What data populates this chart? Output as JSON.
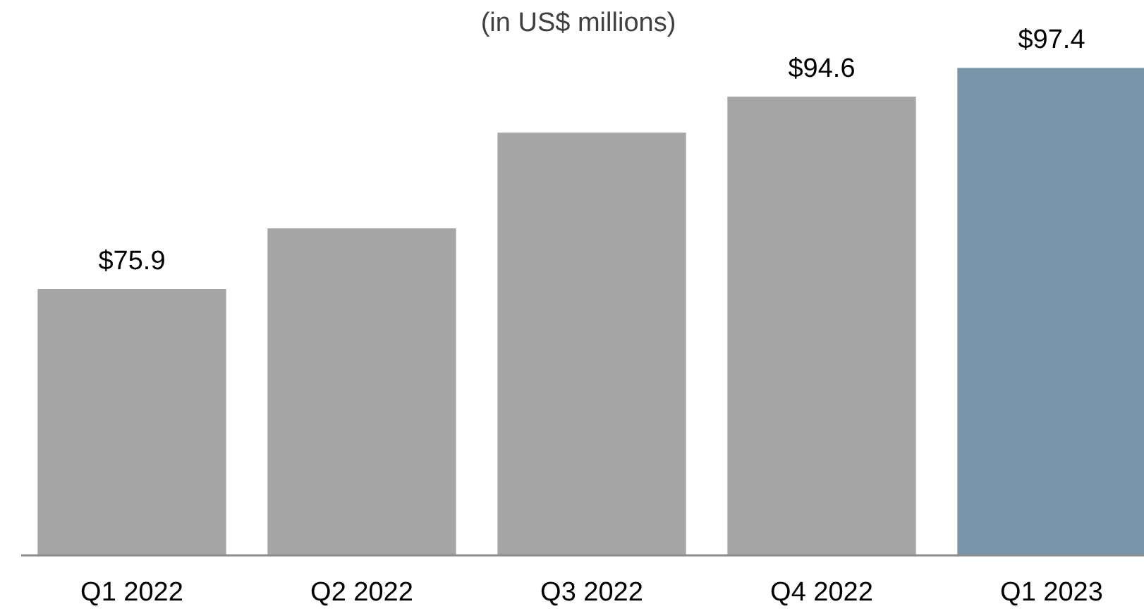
{
  "chart_data": {
    "type": "bar",
    "subtitle": "(in US$ millions)",
    "categories": [
      "Q1 2022",
      "Q2 2022",
      "Q3 2022",
      "Q4 2022",
      "Q1 2023"
    ],
    "values": [
      75.9,
      81.8,
      91.1,
      94.6,
      97.4
    ],
    "colors": [
      "#a6a6a6",
      "#a6a6a6",
      "#a6a6a6",
      "#a6a6a6",
      "#7895aa"
    ],
    "value_labels": [
      "$75.9",
      null,
      null,
      "$94.6",
      "$97.4"
    ],
    "ylim": [
      50,
      104
    ],
    "tick_labels": "x"
  }
}
